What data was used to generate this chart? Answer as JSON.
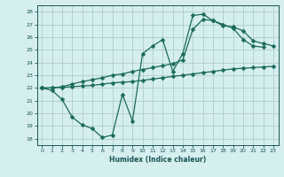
{
  "xlabel": "Humidex (Indice chaleur)",
  "bg_color": "#d5eeee",
  "grid_color": "#c8dede",
  "line_color": "#1a6b5a",
  "xlim": [
    -0.5,
    23.5
  ],
  "ylim": [
    17.5,
    28.5
  ],
  "xticks": [
    0,
    1,
    2,
    3,
    4,
    5,
    6,
    7,
    8,
    9,
    10,
    11,
    12,
    13,
    14,
    15,
    16,
    17,
    18,
    19,
    20,
    21,
    22,
    23
  ],
  "yticks": [
    18,
    19,
    20,
    21,
    22,
    23,
    24,
    25,
    26,
    27,
    28
  ],
  "line1_x": [
    0,
    1,
    2,
    3,
    4,
    5,
    6,
    7,
    8,
    9,
    10,
    11,
    12,
    13,
    14,
    15,
    16,
    17,
    18,
    19,
    20,
    21,
    22
  ],
  "line1_y": [
    22.0,
    21.8,
    21.1,
    19.7,
    19.1,
    18.8,
    18.1,
    18.3,
    21.5,
    19.4,
    24.7,
    25.3,
    25.8,
    23.3,
    24.7,
    27.7,
    27.8,
    27.3,
    27.0,
    26.7,
    25.8,
    25.3,
    25.2
  ],
  "line2_x": [
    0,
    1,
    2,
    3,
    4,
    5,
    6,
    7,
    8,
    9,
    10,
    11,
    12,
    13,
    14,
    15,
    16,
    17,
    18,
    19,
    20,
    21,
    22,
    23
  ],
  "line2_y": [
    22.0,
    22.0,
    22.05,
    22.1,
    22.15,
    22.2,
    22.3,
    22.4,
    22.45,
    22.5,
    22.6,
    22.7,
    22.8,
    22.9,
    23.0,
    23.1,
    23.2,
    23.3,
    23.4,
    23.5,
    23.55,
    23.6,
    23.65,
    23.7
  ],
  "line3_x": [
    0,
    1,
    2,
    3,
    4,
    5,
    6,
    7,
    8,
    9,
    10,
    11,
    12,
    13,
    14,
    15,
    16,
    17,
    18,
    19,
    20,
    21,
    22,
    23
  ],
  "line3_y": [
    22.0,
    22.0,
    22.1,
    22.3,
    22.5,
    22.65,
    22.8,
    23.0,
    23.1,
    23.3,
    23.45,
    23.6,
    23.75,
    23.9,
    24.2,
    26.6,
    27.4,
    27.3,
    26.9,
    26.8,
    26.5,
    25.7,
    25.5,
    25.3
  ]
}
